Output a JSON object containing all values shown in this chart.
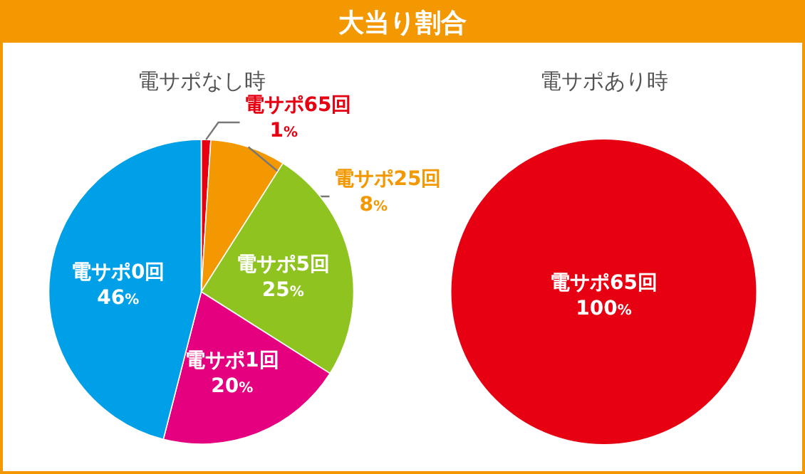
{
  "chart_data": [
    {
      "type": "pie",
      "annotations": [
        "大当り割合"
      ],
      "title": "電サポなし時",
      "categories": [
        "電サポ65回",
        "電サポ25回",
        "電サポ5回",
        "電サポ1回",
        "電サポ0回"
      ],
      "values": [
        1,
        8,
        25,
        20,
        46
      ],
      "colors": [
        "#e60012",
        "#f39800",
        "#8fc31f",
        "#e4007f",
        "#00a0e9"
      ],
      "value_labels": [
        "1%",
        "8%",
        "25%",
        "20%",
        "46%"
      ]
    },
    {
      "type": "pie",
      "title": "電サポあり時",
      "categories": [
        "電サポ65回"
      ],
      "values": [
        100
      ],
      "colors": [
        "#e60012"
      ],
      "value_labels": [
        "100%"
      ]
    }
  ]
}
